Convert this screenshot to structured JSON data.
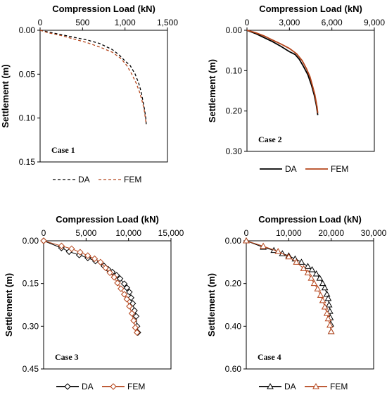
{
  "colors": {
    "da": "#000000",
    "fem": "#b5451b"
  },
  "chart_data": [
    {
      "type": "line",
      "case_label": "Case 1",
      "xlabel": "Compression Load (kN)",
      "ylabel": "Settlement (m)",
      "xlim": [
        0,
        1500
      ],
      "ylim": [
        0,
        0.15
      ],
      "x_ticks": [
        0,
        500,
        1000,
        1500
      ],
      "x_tick_labels": [
        "0",
        "500",
        "1,000",
        "1,500"
      ],
      "y_ticks": [
        0,
        0.05,
        0.1,
        0.15
      ],
      "y_tick_labels": [
        "0.00",
        "0.05",
        "0.10",
        "0.15"
      ],
      "line_style": "dashed",
      "marker": "none",
      "legend": [
        "DA",
        "FEM"
      ],
      "series": [
        {
          "name": "DA",
          "points": [
            [
              0,
              0
            ],
            [
              100,
              0.002
            ],
            [
              250,
              0.005
            ],
            [
              400,
              0.008
            ],
            [
              550,
              0.011
            ],
            [
              700,
              0.015
            ],
            [
              850,
              0.022
            ],
            [
              930,
              0.028
            ],
            [
              1000,
              0.035
            ],
            [
              1060,
              0.04
            ],
            [
              1120,
              0.05
            ],
            [
              1160,
              0.06
            ],
            [
              1190,
              0.07
            ],
            [
              1210,
              0.08
            ],
            [
              1230,
              0.09
            ],
            [
              1245,
              0.1
            ],
            [
              1250,
              0.107
            ]
          ]
        },
        {
          "name": "FEM",
          "points": [
            [
              0,
              0
            ],
            [
              100,
              0.003
            ],
            [
              250,
              0.006
            ],
            [
              400,
              0.01
            ],
            [
              550,
              0.014
            ],
            [
              700,
              0.019
            ],
            [
              850,
              0.025
            ],
            [
              950,
              0.032
            ],
            [
              1020,
              0.04
            ],
            [
              1080,
              0.05
            ],
            [
              1130,
              0.06
            ],
            [
              1170,
              0.07
            ],
            [
              1200,
              0.08
            ],
            [
              1225,
              0.09
            ],
            [
              1240,
              0.1
            ],
            [
              1250,
              0.107
            ]
          ]
        }
      ]
    },
    {
      "type": "line",
      "case_label": "Case 2",
      "xlabel": "Compression Load (kN)",
      "ylabel": "Settlement (m)",
      "xlim": [
        0,
        9000
      ],
      "ylim": [
        0,
        0.3
      ],
      "x_ticks": [
        0,
        3000,
        6000,
        9000
      ],
      "x_tick_labels": [
        "0",
        "3,000",
        "6,000",
        "9,000"
      ],
      "y_ticks": [
        0,
        0.1,
        0.2,
        0.3
      ],
      "y_tick_labels": [
        "0.00",
        "0.10",
        "0.20",
        "0.30"
      ],
      "line_style": "solid",
      "marker": "none",
      "legend": [
        "DA",
        "FEM"
      ],
      "series": [
        {
          "name": "DA",
          "points": [
            [
              0,
              0
            ],
            [
              600,
              0.008
            ],
            [
              1200,
              0.018
            ],
            [
              1800,
              0.028
            ],
            [
              2400,
              0.04
            ],
            [
              3000,
              0.053
            ],
            [
              3400,
              0.06
            ],
            [
              3700,
              0.072
            ],
            [
              4000,
              0.09
            ],
            [
              4300,
              0.11
            ],
            [
              4550,
              0.135
            ],
            [
              4750,
              0.16
            ],
            [
              4900,
              0.185
            ],
            [
              5000,
              0.21
            ]
          ]
        },
        {
          "name": "FEM",
          "points": [
            [
              0,
              0
            ],
            [
              600,
              0.006
            ],
            [
              1200,
              0.014
            ],
            [
              1800,
              0.024
            ],
            [
              2400,
              0.034
            ],
            [
              3000,
              0.045
            ],
            [
              3500,
              0.058
            ],
            [
              3900,
              0.075
            ],
            [
              4200,
              0.095
            ],
            [
              4450,
              0.115
            ],
            [
              4650,
              0.14
            ],
            [
              4800,
              0.16
            ],
            [
              4950,
              0.19
            ],
            [
              5000,
              0.205
            ]
          ]
        }
      ]
    },
    {
      "type": "line",
      "case_label": "Case 3",
      "xlabel": "Compression Load (kN)",
      "ylabel": "Settlement (m)",
      "xlim": [
        0,
        15000
      ],
      "ylim": [
        0,
        0.45
      ],
      "x_ticks": [
        0,
        5000,
        10000,
        15000
      ],
      "x_tick_labels": [
        "0",
        "5,000",
        "10,000",
        "15,000"
      ],
      "y_ticks": [
        0,
        0.15,
        0.3,
        0.45
      ],
      "y_tick_labels": [
        "0.00",
        "0.15",
        "0.30",
        "0.45"
      ],
      "line_style": "solid",
      "marker": "diamond",
      "legend": [
        "DA",
        "FEM"
      ],
      "series": [
        {
          "name": "DA",
          "points": [
            [
              0,
              0
            ],
            [
              2100,
              0.025
            ],
            [
              3000,
              0.038
            ],
            [
              4200,
              0.05
            ],
            [
              5200,
              0.06
            ],
            [
              6100,
              0.071
            ],
            [
              7100,
              0.088
            ],
            [
              7600,
              0.1
            ],
            [
              8100,
              0.11
            ],
            [
              8600,
              0.121
            ],
            [
              9000,
              0.133
            ],
            [
              9500,
              0.151
            ],
            [
              9800,
              0.165
            ],
            [
              10100,
              0.18
            ],
            [
              10300,
              0.2
            ],
            [
              10500,
              0.22
            ],
            [
              10700,
              0.245
            ],
            [
              10900,
              0.265
            ],
            [
              11000,
              0.3
            ],
            [
              11100,
              0.322
            ]
          ]
        },
        {
          "name": "FEM",
          "points": [
            [
              0,
              0
            ],
            [
              2100,
              0.018
            ],
            [
              3300,
              0.028
            ],
            [
              4300,
              0.04
            ],
            [
              5200,
              0.052
            ],
            [
              6000,
              0.063
            ],
            [
              6700,
              0.075
            ],
            [
              7300,
              0.095
            ],
            [
              7800,
              0.112
            ],
            [
              8300,
              0.128
            ],
            [
              8700,
              0.148
            ],
            [
              9100,
              0.168
            ],
            [
              9500,
              0.188
            ],
            [
              9800,
              0.205
            ],
            [
              10100,
              0.23
            ],
            [
              10400,
              0.255
            ],
            [
              10600,
              0.28
            ],
            [
              10800,
              0.305
            ],
            [
              11000,
              0.322
            ]
          ]
        }
      ]
    },
    {
      "type": "line",
      "case_label": "Case 4",
      "xlabel": "Compression Load (kN)",
      "ylabel": "Settlement (m)",
      "xlim": [
        0,
        30000
      ],
      "ylim": [
        0,
        0.6
      ],
      "x_ticks": [
        0,
        10000,
        20000,
        30000
      ],
      "x_tick_labels": [
        "0",
        "10,000",
        "20,000",
        "30,000"
      ],
      "y_ticks": [
        0,
        0.2,
        0.4,
        0.6
      ],
      "y_tick_labels": [
        "0.00",
        "0.20",
        "0.40",
        "0.60"
      ],
      "line_style": "solid",
      "marker": "triangle",
      "legend": [
        "DA",
        "FEM"
      ],
      "series": [
        {
          "name": "DA",
          "points": [
            [
              0,
              0
            ],
            [
              4000,
              0.03
            ],
            [
              6500,
              0.045
            ],
            [
              8500,
              0.06
            ],
            [
              10000,
              0.07
            ],
            [
              11500,
              0.085
            ],
            [
              13000,
              0.1
            ],
            [
              14500,
              0.12
            ],
            [
              15500,
              0.135
            ],
            [
              16500,
              0.155
            ],
            [
              17300,
              0.175
            ],
            [
              18000,
              0.2
            ],
            [
              18500,
              0.22
            ],
            [
              19000,
              0.25
            ],
            [
              19300,
              0.27
            ],
            [
              19500,
              0.3
            ],
            [
              19700,
              0.33
            ],
            [
              19800,
              0.36
            ],
            [
              19900,
              0.39
            ],
            [
              20000,
              0.425
            ]
          ]
        },
        {
          "name": "FEM",
          "points": [
            [
              0,
              0
            ],
            [
              4000,
              0.025
            ],
            [
              7500,
              0.05
            ],
            [
              10000,
              0.075
            ],
            [
              11800,
              0.1
            ],
            [
              13500,
              0.13
            ],
            [
              14500,
              0.15
            ],
            [
              15300,
              0.175
            ],
            [
              16000,
              0.2
            ],
            [
              16800,
              0.225
            ],
            [
              17500,
              0.255
            ],
            [
              18000,
              0.28
            ],
            [
              18500,
              0.31
            ],
            [
              19000,
              0.34
            ],
            [
              19300,
              0.365
            ],
            [
              19700,
              0.395
            ],
            [
              20000,
              0.425
            ]
          ]
        }
      ]
    }
  ]
}
